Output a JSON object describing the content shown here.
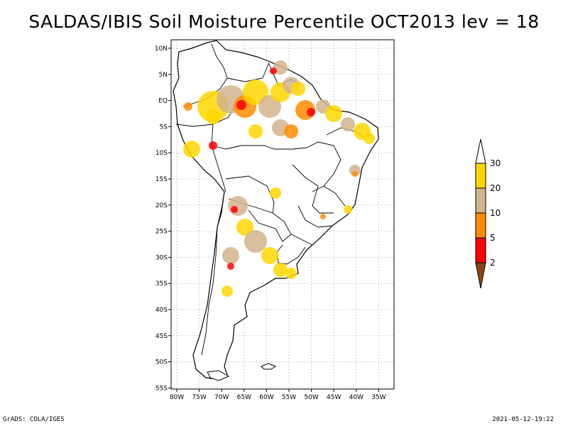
{
  "title": "SALDAS/IBIS Soil Moisture Percentile OCT2013 lev = 18",
  "map": {
    "lat_labels": [
      "10N",
      "5N",
      "EQ",
      "5S",
      "10S",
      "15S",
      "20S",
      "25S",
      "30S",
      "35S",
      "40S",
      "45S",
      "50S",
      "55S"
    ],
    "lon_labels": [
      "80W",
      "75W",
      "70W",
      "65W",
      "60W",
      "55W",
      "50W",
      "45W",
      "40W",
      "35W"
    ]
  },
  "legend": {
    "labels": [
      "30",
      "20",
      "10",
      "5",
      "2"
    ],
    "colors": {
      "above_30": "#ffffff",
      "c20_30": "#ffd700",
      "c10_20": "#d2b48c",
      "c5_10": "#ff8c00",
      "c2_5": "#ff0000",
      "below_2": "#8b4513"
    }
  },
  "footer": {
    "left": "GrADS: COLA/IGES",
    "right": "2021-05-12-19:22"
  }
}
